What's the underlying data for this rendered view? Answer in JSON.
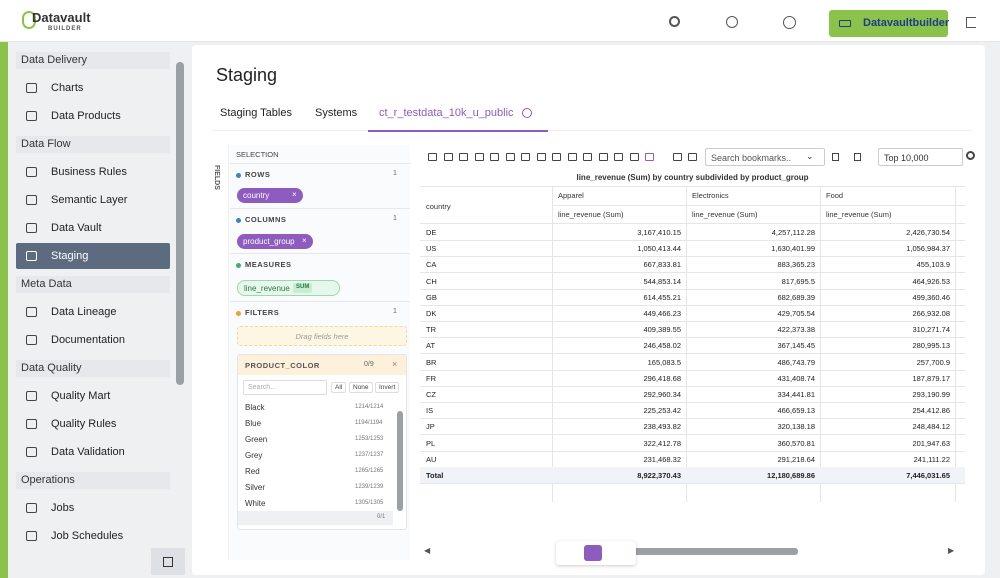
{
  "header": {
    "logo": "Datavault",
    "logo_sub": "BUILDER",
    "button": "Datavaultbuilder"
  },
  "sidebar": {
    "sections": [
      {
        "title": "Data Delivery",
        "items": [
          "Charts",
          "Data Products"
        ]
      },
      {
        "title": "Data Flow",
        "items": [
          "Business Rules",
          "Semantic Layer",
          "Data Vault",
          "Staging"
        ]
      },
      {
        "title": "Meta Data",
        "items": [
          "Data Lineage",
          "Documentation"
        ]
      },
      {
        "title": "Data Quality",
        "items": [
          "Quality Mart",
          "Quality Rules",
          "Data Validation"
        ]
      },
      {
        "title": "Operations",
        "items": [
          "Jobs",
          "Job Schedules"
        ]
      }
    ]
  },
  "page": {
    "title": "Staging",
    "tabs": [
      "Staging Tables",
      "Systems",
      "ct_r_testdata_10k_u_public"
    ]
  },
  "pivot": {
    "fields_label": "FIELDS",
    "selection": "SELECTION",
    "rows": {
      "label": "ROWS",
      "count": "1",
      "chip": "country"
    },
    "columns": {
      "label": "COLUMNS",
      "count": "1",
      "chip": "product_group"
    },
    "measures": {
      "label": "MEASURES",
      "chip": "line_revenue",
      "agg": "SUM"
    },
    "filters": {
      "label": "FILTERS",
      "count": "1",
      "drop_hint": "Drag fields here"
    },
    "filter_box": {
      "title": "PRODUCT_COLOR",
      "count": "0/9",
      "search_placeholder": "Search...",
      "buttons": [
        "All",
        "None",
        "Invert"
      ],
      "items": [
        {
          "name": "Black",
          "count": "1214/1214"
        },
        {
          "name": "Blue",
          "count": "1194/1194"
        },
        {
          "name": "Green",
          "count": "1253/1253"
        },
        {
          "name": "Grey",
          "count": "1237/1237"
        },
        {
          "name": "Red",
          "count": "1265/1265"
        },
        {
          "name": "Silver",
          "count": "1239/1239"
        },
        {
          "name": "White",
          "count": "1305/1305"
        }
      ],
      "more": "0/1"
    },
    "toolbar": {
      "search_placeholder": "Search bookmarks..",
      "limit": "Top 10,000"
    }
  },
  "table": {
    "title": "line_revenue (Sum) by country subdivided by product_group",
    "row_header": "country",
    "columns": [
      "Apparel",
      "Electronics",
      "Food"
    ],
    "measure": "line_revenue (Sum)",
    "rows": [
      [
        "DE",
        "3,167,410.15",
        "4,257,112.28",
        "2,426,730.54"
      ],
      [
        "US",
        "1,050,413.44",
        "1,630,401.99",
        "1,056,984.37"
      ],
      [
        "CA",
        "667,833.81",
        "883,365.23",
        "455,103.9"
      ],
      [
        "CH",
        "544,853.14",
        "817,695.5",
        "464,926.53"
      ],
      [
        "GB",
        "614,455.21",
        "682,689.39",
        "499,360.46"
      ],
      [
        "DK",
        "449,466.23",
        "429,705.54",
        "266,932.08"
      ],
      [
        "TR",
        "409,389.55",
        "422,373.38",
        "310,271.74"
      ],
      [
        "AT",
        "246,458.02",
        "367,145.45",
        "280,995.13"
      ],
      [
        "BR",
        "165,083.5",
        "486,743.79",
        "257,700.9"
      ],
      [
        "FR",
        "296,418.68",
        "431,408.74",
        "187,879.17"
      ],
      [
        "CZ",
        "292,960.34",
        "334,441.81",
        "293,190.99"
      ],
      [
        "IS",
        "225,253.42",
        "466,659.13",
        "254,412.86"
      ],
      [
        "JP",
        "238,493.82",
        "320,138.18",
        "248,484.12"
      ],
      [
        "PL",
        "322,412.78",
        "360,570.81",
        "201,947.63"
      ],
      [
        "AU",
        "231,468.32",
        "291,218.64",
        "241,111.22"
      ]
    ],
    "total": [
      "Total",
      "8,922,370.43",
      "12,180,689.86",
      "7,446,031.65"
    ]
  }
}
